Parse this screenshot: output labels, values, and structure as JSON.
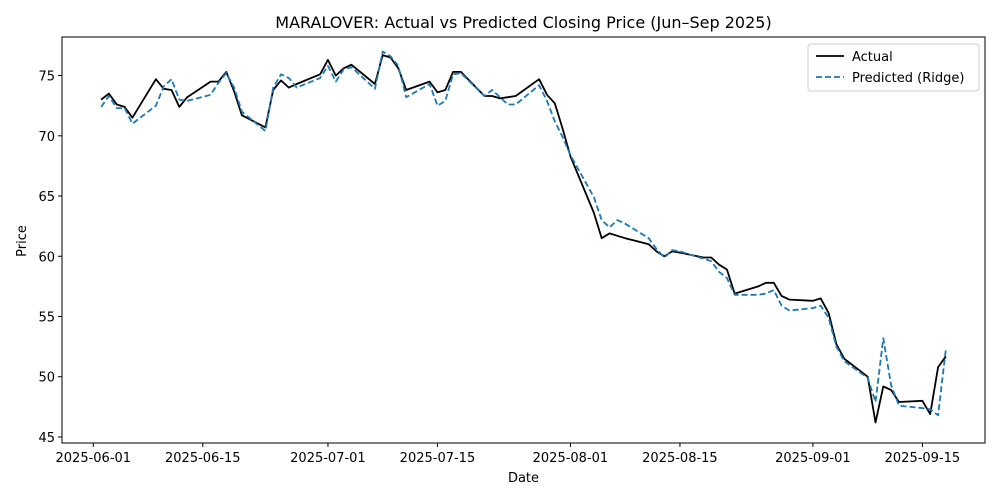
{
  "chart_data": {
    "type": "line",
    "title": "MARALOVER: Actual vs Predicted Closing Price (Jun–Sep 2025)",
    "xlabel": "Date",
    "ylabel": "Price",
    "x_range": [
      "2025-05-28",
      "2025-09-23"
    ],
    "ylim": [
      44.5,
      78.2
    ],
    "x_ticks": [
      "2025-06-01",
      "2025-06-15",
      "2025-07-01",
      "2025-07-15",
      "2025-08-01",
      "2025-08-15",
      "2025-09-01",
      "2025-09-15"
    ],
    "y_ticks": [
      45,
      50,
      55,
      60,
      65,
      70,
      75
    ],
    "grid": false,
    "legend": "top-right",
    "x": [
      "2025-06-02",
      "2025-06-03",
      "2025-06-04",
      "2025-06-05",
      "2025-06-06",
      "2025-06-09",
      "2025-06-10",
      "2025-06-11",
      "2025-06-12",
      "2025-06-13",
      "2025-06-16",
      "2025-06-17",
      "2025-06-18",
      "2025-06-19",
      "2025-06-20",
      "2025-06-23",
      "2025-06-24",
      "2025-06-25",
      "2025-06-26",
      "2025-06-27",
      "2025-06-30",
      "2025-07-01",
      "2025-07-02",
      "2025-07-03",
      "2025-07-04",
      "2025-07-07",
      "2025-07-08",
      "2025-07-09",
      "2025-07-10",
      "2025-07-11",
      "2025-07-14",
      "2025-07-15",
      "2025-07-16",
      "2025-07-17",
      "2025-07-18",
      "2025-07-21",
      "2025-07-22",
      "2025-07-23",
      "2025-07-24",
      "2025-07-25",
      "2025-07-28",
      "2025-07-29",
      "2025-07-30",
      "2025-07-31",
      "2025-08-01",
      "2025-08-04",
      "2025-08-05",
      "2025-08-06",
      "2025-08-07",
      "2025-08-08",
      "2025-08-11",
      "2025-08-12",
      "2025-08-13",
      "2025-08-14",
      "2025-08-15",
      "2025-08-18",
      "2025-08-19",
      "2025-08-20",
      "2025-08-21",
      "2025-08-22",
      "2025-08-25",
      "2025-08-26",
      "2025-08-27",
      "2025-08-28",
      "2025-08-29",
      "2025-09-01",
      "2025-09-02",
      "2025-09-03",
      "2025-09-04",
      "2025-09-05",
      "2025-09-08",
      "2025-09-09",
      "2025-09-10",
      "2025-09-11",
      "2025-09-12",
      "2025-09-15",
      "2025-09-16",
      "2025-09-17",
      "2025-09-18"
    ],
    "series": [
      {
        "name": "Actual",
        "color": "#000000",
        "style": "solid",
        "values": [
          73.0,
          73.5,
          72.6,
          72.4,
          71.5,
          74.7,
          73.9,
          73.8,
          72.4,
          73.2,
          74.5,
          74.5,
          75.3,
          73.7,
          71.7,
          70.7,
          73.8,
          74.6,
          74.0,
          74.3,
          75.1,
          76.3,
          75.0,
          75.6,
          75.9,
          74.3,
          76.7,
          76.5,
          75.6,
          73.8,
          74.5,
          73.6,
          73.8,
          75.3,
          75.3,
          73.3,
          73.3,
          73.1,
          73.2,
          73.3,
          74.7,
          73.4,
          72.7,
          70.6,
          68.3,
          63.6,
          61.5,
          61.9,
          61.7,
          61.5,
          61.0,
          60.4,
          60.0,
          60.4,
          60.3,
          59.9,
          59.9,
          59.3,
          58.9,
          56.9,
          57.5,
          57.8,
          57.8,
          56.7,
          56.4,
          56.3,
          56.5,
          55.3,
          52.7,
          51.5,
          50.0,
          46.2,
          49.2,
          48.9,
          47.9,
          48.0,
          46.9,
          50.8,
          51.7
        ]
      },
      {
        "name": "Predicted (Ridge)",
        "color": "#1f77b4",
        "style": "dashed",
        "values": [
          72.4,
          73.3,
          72.3,
          72.3,
          71.0,
          72.5,
          74.1,
          74.7,
          73.0,
          72.9,
          73.4,
          74.4,
          75.2,
          74.0,
          72.0,
          70.4,
          74.0,
          75.1,
          74.8,
          74.0,
          74.8,
          75.8,
          74.5,
          75.5,
          75.7,
          73.9,
          77.0,
          76.6,
          75.8,
          73.2,
          74.3,
          72.5,
          72.9,
          75.1,
          75.2,
          73.3,
          73.8,
          73.2,
          72.6,
          72.6,
          74.2,
          72.9,
          71.2,
          69.9,
          68.4,
          64.9,
          63.0,
          62.4,
          63.0,
          62.7,
          61.5,
          60.6,
          59.9,
          60.5,
          60.4,
          59.8,
          59.6,
          58.7,
          58.2,
          56.8,
          56.8,
          56.9,
          57.2,
          55.9,
          55.5,
          55.7,
          55.9,
          54.9,
          52.5,
          51.3,
          49.9,
          47.9,
          53.2,
          49.3,
          47.6,
          47.4,
          47.3,
          46.8,
          52.3
        ]
      }
    ]
  }
}
